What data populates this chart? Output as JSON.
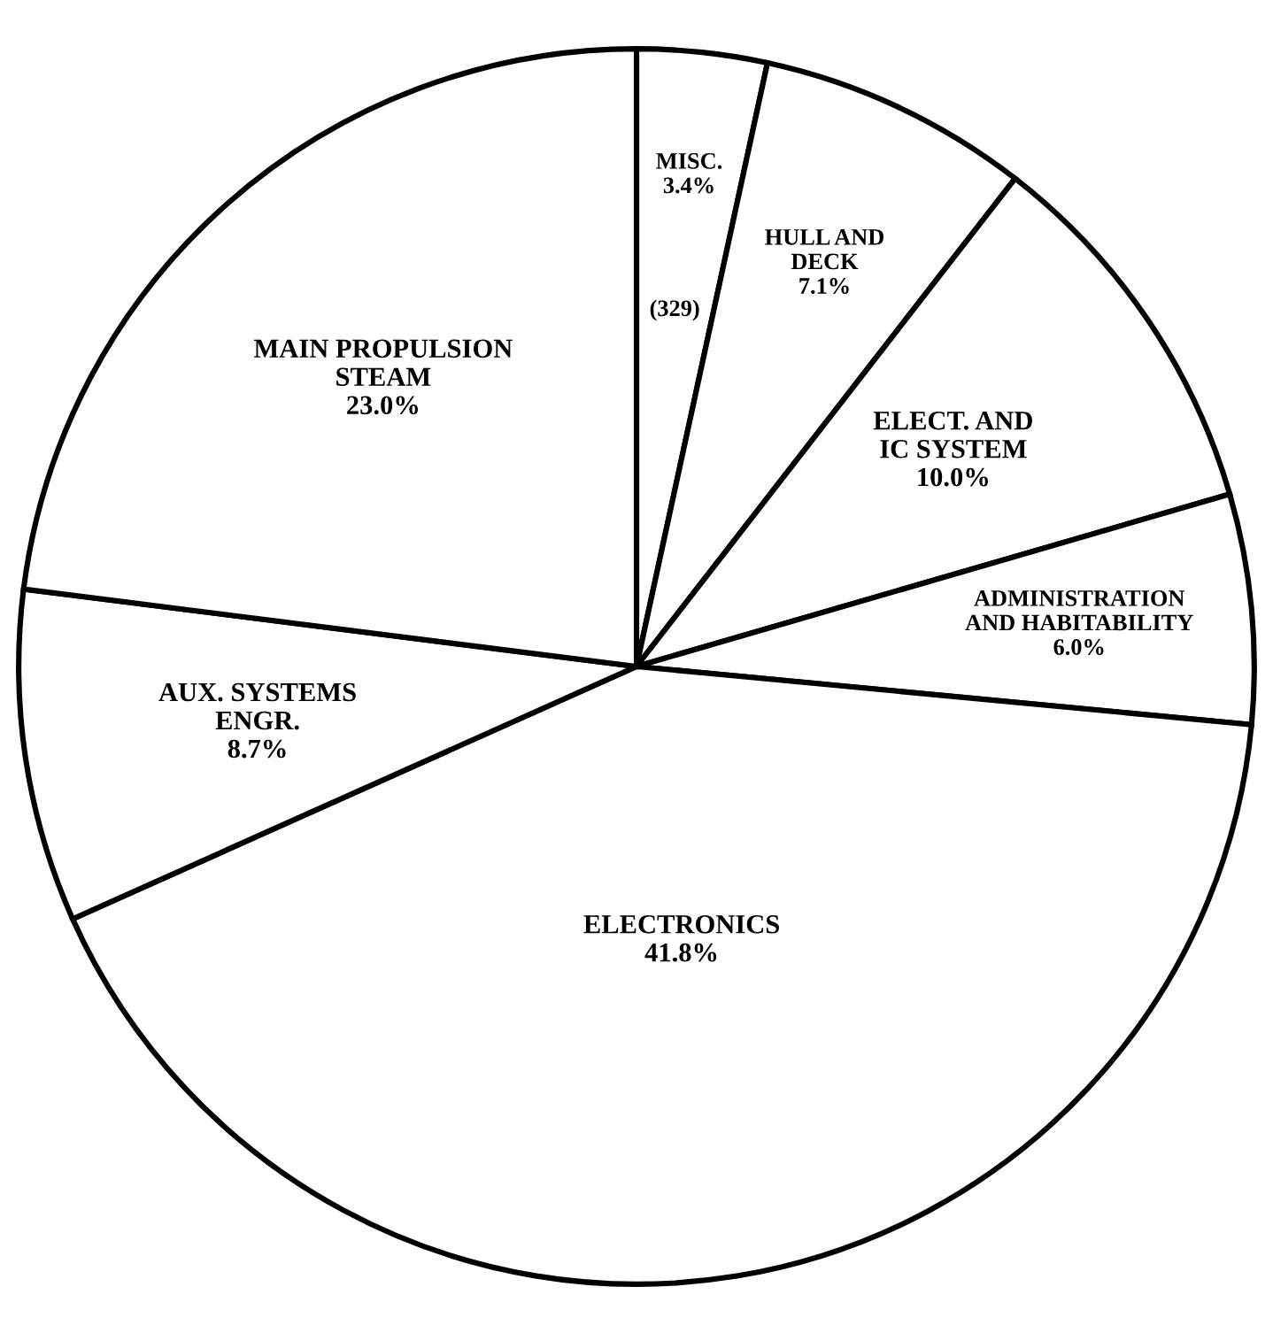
{
  "chart_data": {
    "type": "pie",
    "categories": [
      "MISC.",
      "HULL AND\nDECK",
      "ELECT. AND\nIC SYSTEM",
      "ADMINISTRATION\nAND HABITABILITY",
      "ELECTRONICS",
      "AUX. SYSTEMS\nENGR.",
      "MAIN PROPULSION\nSTEAM"
    ],
    "values": [
      3.4,
      7.1,
      10.0,
      6.0,
      41.8,
      8.7,
      23.0
    ],
    "value_labels": [
      "3.4%",
      "7.1%",
      "10.0%",
      "6.0%",
      "41.8%",
      "8.7%",
      "23.0%"
    ],
    "colors": [
      "#ffffff",
      "#ffffff",
      "#ffffff",
      "#ffffff",
      "#ffffff",
      "#ffffff",
      "#ffffff"
    ],
    "annotations": [
      "(329)"
    ]
  }
}
